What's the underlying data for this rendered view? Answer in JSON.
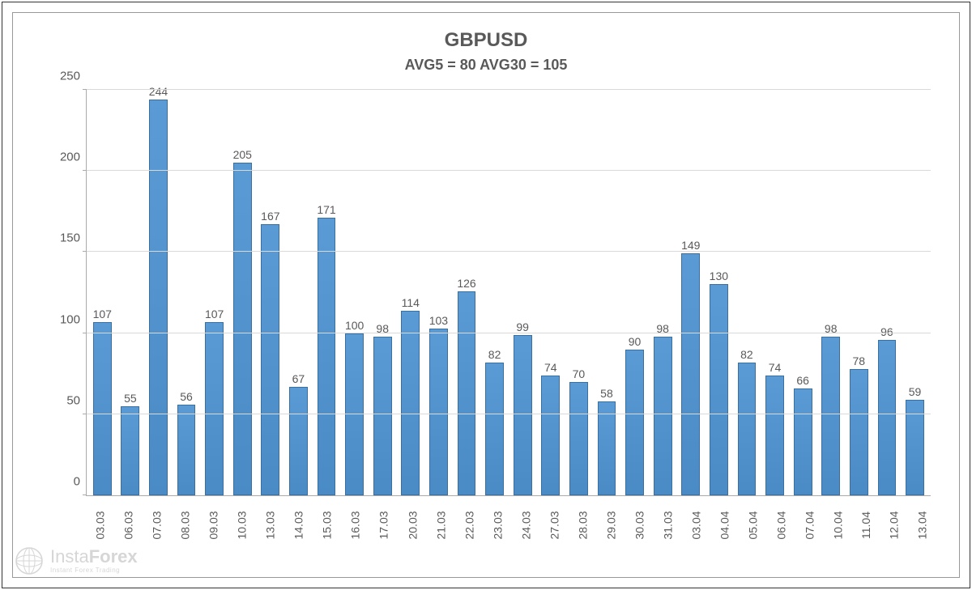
{
  "chart": {
    "type": "bar",
    "title": "GBPUSD",
    "subtitle": "AVG5 = 80 AVG30 = 105",
    "title_fontsize": 24,
    "subtitle_fontsize": 18,
    "title_color": "#595959",
    "ylim": [
      0,
      250
    ],
    "ytick_step": 50,
    "yticks": [
      0,
      50,
      100,
      150,
      200,
      250
    ],
    "grid_color": "#d9d9d9",
    "axis_color": "#aaaaaa",
    "background_color": "#ffffff",
    "bar_fill_top": "#5b9bd5",
    "bar_fill_bottom": "#4a8bc5",
    "bar_border": "#3a6fa0",
    "bar_width": 0.66,
    "label_fontsize": 14,
    "label_color": "#595959",
    "categories": [
      "03.03",
      "06.03",
      "07.03",
      "08.03",
      "09.03",
      "10.03",
      "13.03",
      "14.03",
      "15.03",
      "16.03",
      "17.03",
      "20.03",
      "21.03",
      "22.03",
      "23.03",
      "24.03",
      "27.03",
      "28.03",
      "29.03",
      "30.03",
      "31.03",
      "03.04",
      "04.04",
      "05.04",
      "06.04",
      "07.04",
      "10.04",
      "11.04",
      "12.04",
      "13.04"
    ],
    "values": [
      107,
      55,
      244,
      56,
      107,
      205,
      167,
      67,
      171,
      100,
      98,
      114,
      103,
      126,
      82,
      99,
      74,
      70,
      58,
      90,
      98,
      149,
      130,
      82,
      74,
      66,
      98,
      78,
      96,
      59
    ]
  },
  "watermark": {
    "brand_light": "Insta",
    "brand_bold": "Forex",
    "tagline": "Instant Forex Trading"
  }
}
